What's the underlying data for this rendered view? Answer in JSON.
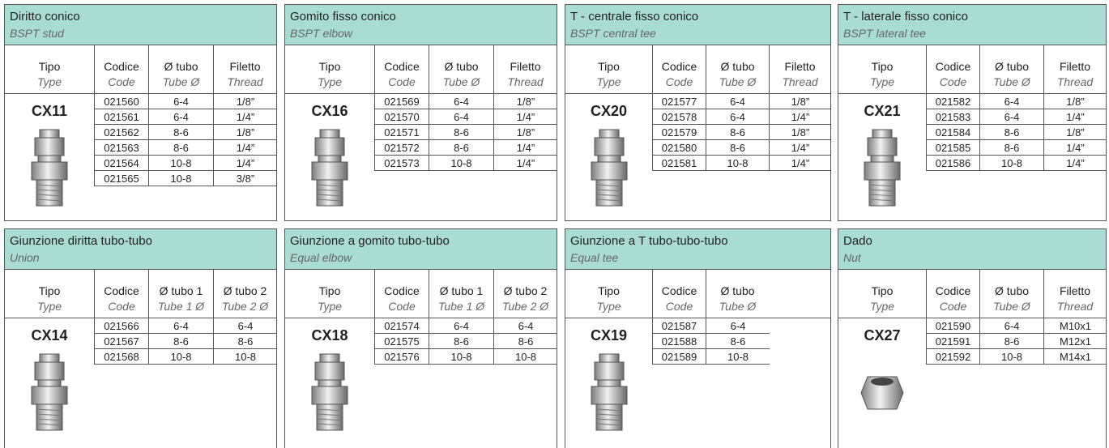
{
  "panels": [
    {
      "title": "Diritto conico",
      "subtitle": "BSPT stud",
      "model": "CX11",
      "columns": [
        {
          "label": "Tipo",
          "sub": "Type"
        },
        {
          "label": "Codice",
          "sub": "Code"
        },
        {
          "label": "Ø tubo",
          "sub": "Tube Ø"
        },
        {
          "label": "Filetto",
          "sub": "Thread"
        }
      ],
      "rows": [
        [
          "021560",
          "6-4",
          "1/8”"
        ],
        [
          "021561",
          "6-4",
          "1/4”"
        ],
        [
          "021562",
          "8-6",
          "1/8”"
        ],
        [
          "021563",
          "8-6",
          "1/4”"
        ],
        [
          "021564",
          "10-8",
          "1/4”"
        ],
        [
          "021565",
          "10-8",
          "3/8”"
        ]
      ]
    },
    {
      "title": "Gomito fisso conico",
      "subtitle": "BSPT elbow",
      "model": "CX16",
      "columns": [
        {
          "label": "Tipo",
          "sub": "Type"
        },
        {
          "label": "Codice",
          "sub": "Code"
        },
        {
          "label": "Ø tubo",
          "sub": "Tube Ø"
        },
        {
          "label": "Filetto",
          "sub": "Thread"
        }
      ],
      "rows": [
        [
          "021569",
          "6-4",
          "1/8”"
        ],
        [
          "021570",
          "6-4",
          "1/4”"
        ],
        [
          "021571",
          "8-6",
          "1/8”"
        ],
        [
          "021572",
          "8-6",
          "1/4”"
        ],
        [
          "021573",
          "10-8",
          "1/4”"
        ]
      ]
    },
    {
      "title": "T - centrale fisso conico",
      "subtitle": "BSPT central tee",
      "model": "CX20",
      "columns": [
        {
          "label": "Tipo",
          "sub": "Type"
        },
        {
          "label": "Codice",
          "sub": "Code"
        },
        {
          "label": "Ø tubo",
          "sub": "Tube Ø"
        },
        {
          "label": "Filetto",
          "sub": "Thread"
        }
      ],
      "rows": [
        [
          "021577",
          "6-4",
          "1/8”"
        ],
        [
          "021578",
          "6-4",
          "1/4”"
        ],
        [
          "021579",
          "8-6",
          "1/8”"
        ],
        [
          "021580",
          "8-6",
          "1/4”"
        ],
        [
          "021581",
          "10-8",
          "1/4”"
        ]
      ]
    },
    {
      "title": "T - laterale fisso conico",
      "subtitle": "BSPT lateral tee",
      "model": "CX21",
      "columns": [
        {
          "label": "Tipo",
          "sub": "Type"
        },
        {
          "label": "Codice",
          "sub": "Code"
        },
        {
          "label": "Ø tubo",
          "sub": "Tube Ø"
        },
        {
          "label": "Filetto",
          "sub": "Thread"
        }
      ],
      "rows": [
        [
          "021582",
          "6-4",
          "1/8”"
        ],
        [
          "021583",
          "6-4",
          "1/4”"
        ],
        [
          "021584",
          "8-6",
          "1/8”"
        ],
        [
          "021585",
          "8-6",
          "1/4”"
        ],
        [
          "021586",
          "10-8",
          "1/4”"
        ]
      ]
    },
    {
      "title": "Giunzione diritta tubo-tubo",
      "subtitle": "Union",
      "model": "CX14",
      "columns": [
        {
          "label": "Tipo",
          "sub": "Type"
        },
        {
          "label": "Codice",
          "sub": "Code"
        },
        {
          "label": "Ø tubo 1",
          "sub": "Tube 1 Ø"
        },
        {
          "label": "Ø tubo 2",
          "sub": "Tube 2 Ø"
        }
      ],
      "rows": [
        [
          "021566",
          "6-4",
          "6-4"
        ],
        [
          "021567",
          "8-6",
          "8-6"
        ],
        [
          "021568",
          "10-8",
          "10-8"
        ]
      ]
    },
    {
      "title": "Giunzione a gomito tubo-tubo",
      "subtitle": "Equal elbow",
      "model": "CX18",
      "columns": [
        {
          "label": "Tipo",
          "sub": "Type"
        },
        {
          "label": "Codice",
          "sub": "Code"
        },
        {
          "label": "Ø tubo 1",
          "sub": "Tube 1 Ø"
        },
        {
          "label": "Ø tubo 2",
          "sub": "Tube 2 Ø"
        }
      ],
      "rows": [
        [
          "021574",
          "6-4",
          "6-4"
        ],
        [
          "021575",
          "8-6",
          "8-6"
        ],
        [
          "021576",
          "10-8",
          "10-8"
        ]
      ]
    },
    {
      "title": "Giunzione a T tubo-tubo-tubo",
      "subtitle": "Equal tee",
      "model": "CX19",
      "columns": [
        {
          "label": "Tipo",
          "sub": "Type"
        },
        {
          "label": "Codice",
          "sub": "Code"
        },
        {
          "label": "Ø tubo",
          "sub": "Tube Ø"
        }
      ],
      "rows": [
        [
          "021587",
          "6-4"
        ],
        [
          "021588",
          "8-6"
        ],
        [
          "021589",
          "10-8"
        ]
      ]
    },
    {
      "title": "Dado",
      "subtitle": "Nut",
      "model": "CX27",
      "columns": [
        {
          "label": "Tipo",
          "sub": "Type"
        },
        {
          "label": "Codice",
          "sub": "Code"
        },
        {
          "label": "Ø tubo",
          "sub": "Tube Ø"
        },
        {
          "label": "Filetto",
          "sub": "Thread"
        }
      ],
      "rows": [
        [
          "021590",
          "6-4",
          "M10x1"
        ],
        [
          "021591",
          "8-6",
          "M12x1"
        ],
        [
          "021592",
          "10-8",
          "M14x1"
        ]
      ]
    }
  ]
}
